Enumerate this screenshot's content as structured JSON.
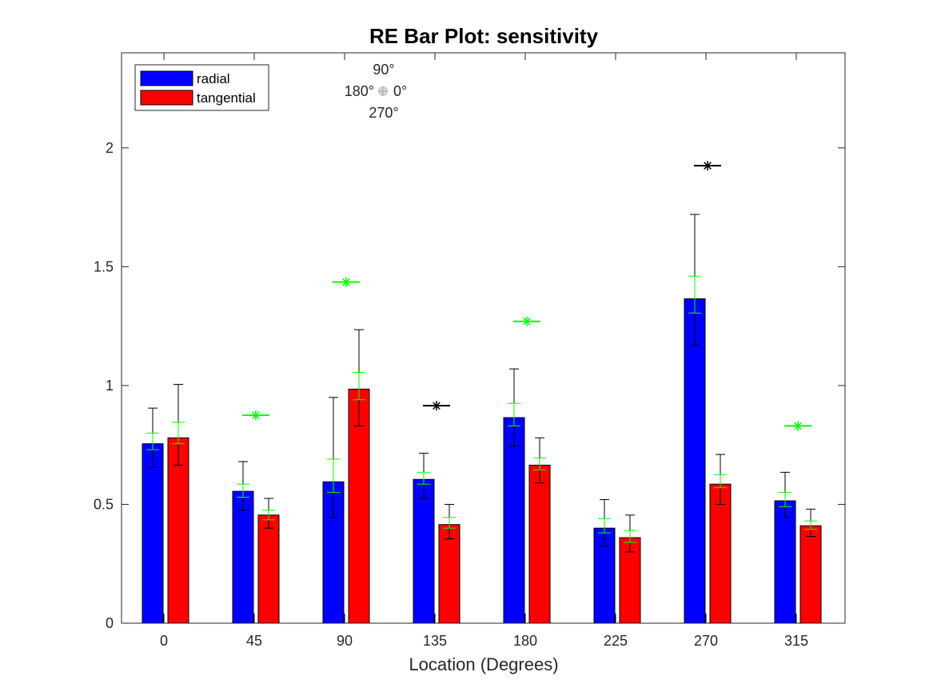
{
  "chart_data": {
    "type": "bar",
    "title": "RE Bar Plot: sensitivity",
    "xlabel": "Location (Degrees)",
    "ylabel": "",
    "categories": [
      "0",
      "45",
      "90",
      "135",
      "180",
      "225",
      "270",
      "315"
    ],
    "ylim": [
      0,
      2.4
    ],
    "yticks": [
      "0",
      "0.5",
      "1",
      "1.5",
      "2"
    ],
    "grid": false,
    "legend_placement": "top-left",
    "colors": {
      "radial": "#0000ff",
      "tangential": "#ff0000",
      "green_marks": "#00ff00",
      "black_marks": "#000000"
    },
    "series": [
      {
        "name": "radial",
        "values": [
          0.755,
          0.555,
          0.595,
          0.605,
          0.865,
          0.4,
          1.365,
          0.515
        ],
        "err_black": [
          [
            0.655,
            0.905
          ],
          [
            0.475,
            0.68
          ],
          [
            0.445,
            0.95
          ],
          [
            0.525,
            0.715
          ],
          [
            0.745,
            1.07
          ],
          [
            0.325,
            0.52
          ],
          [
            1.17,
            1.72
          ],
          [
            0.445,
            0.635
          ]
        ],
        "err_green": [
          [
            0.73,
            0.8
          ],
          [
            0.53,
            0.585
          ],
          [
            0.55,
            0.69
          ],
          [
            0.585,
            0.635
          ],
          [
            0.83,
            0.925
          ],
          [
            0.38,
            0.44
          ],
          [
            1.305,
            1.46
          ],
          [
            0.49,
            0.55
          ]
        ]
      },
      {
        "name": "tangential",
        "values": [
          0.78,
          0.455,
          0.985,
          0.415,
          0.665,
          0.36,
          0.585,
          0.41
        ],
        "err_black": [
          [
            0.665,
            1.005
          ],
          [
            0.4,
            0.525
          ],
          [
            0.83,
            1.235
          ],
          [
            0.355,
            0.5
          ],
          [
            0.59,
            0.78
          ],
          [
            0.3,
            0.455
          ],
          [
            0.5,
            0.71
          ],
          [
            0.365,
            0.48
          ]
        ],
        "err_green": [
          [
            0.755,
            0.845
          ],
          [
            0.435,
            0.475
          ],
          [
            0.94,
            1.055
          ],
          [
            0.4,
            0.445
          ],
          [
            0.645,
            0.695
          ],
          [
            0.34,
            0.39
          ],
          [
            0.57,
            0.625
          ],
          [
            0.395,
            0.43
          ]
        ]
      }
    ],
    "markers": [
      {
        "category": "45",
        "value": 0.875,
        "color": "green"
      },
      {
        "category": "90",
        "value": 1.435,
        "color": "green"
      },
      {
        "category": "135",
        "value": 0.915,
        "color": "black"
      },
      {
        "category": "180",
        "value": 1.27,
        "color": "green"
      },
      {
        "category": "270",
        "value": 1.925,
        "color": "black"
      },
      {
        "category": "315",
        "value": 0.83,
        "color": "green"
      }
    ],
    "compass": {
      "top": "90°",
      "left": "180°",
      "right": "0°",
      "bottom": "270°"
    }
  }
}
